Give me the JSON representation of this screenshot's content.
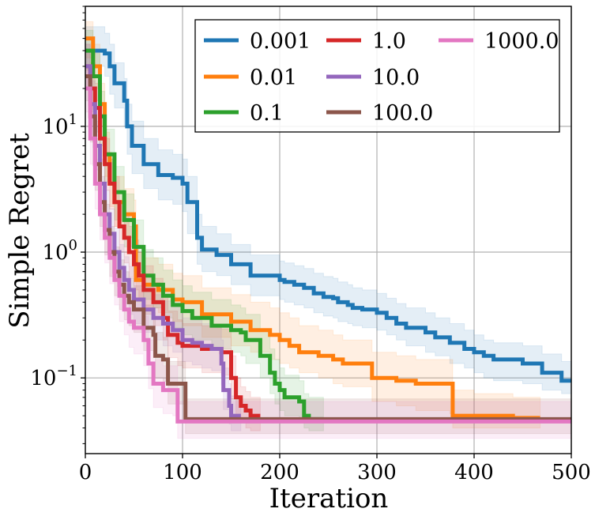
{
  "chart_data": {
    "type": "line",
    "xlabel": "Iteration",
    "ylabel": "Simple Regret",
    "xlim": [
      0,
      500
    ],
    "ylim": [
      0.025,
      90
    ],
    "yscale": "log",
    "grid": true,
    "legend": {
      "placement": "top-right",
      "columns": 3
    },
    "x_ticks": [
      {
        "value": 0,
        "label": "0"
      },
      {
        "value": 100,
        "label": "100"
      },
      {
        "value": 200,
        "label": "200"
      },
      {
        "value": 300,
        "label": "300"
      },
      {
        "value": 400,
        "label": "400"
      },
      {
        "value": 500,
        "label": "500"
      }
    ],
    "y_ticks": [
      {
        "value": 0.1,
        "base": "10",
        "exp": "−1"
      },
      {
        "value": 1,
        "base": "10",
        "exp": "0"
      },
      {
        "value": 10,
        "base": "10",
        "exp": "1"
      }
    ],
    "series": [
      {
        "name": "0.001",
        "color": "#1f77b4",
        "x": [
          0,
          20,
          25,
          30,
          40,
          43,
          48,
          60,
          75,
          90,
          100,
          105,
          115,
          120,
          135,
          150,
          170,
          200,
          205,
          215,
          225,
          235,
          245,
          255,
          260,
          270,
          275,
          285,
          300,
          310,
          320,
          330,
          350,
          360,
          375,
          390,
          400,
          410,
          420,
          450,
          470,
          490,
          500
        ],
        "y": [
          40,
          38,
          30,
          22,
          16,
          10,
          7,
          5,
          4.1,
          3.9,
          3.5,
          2.5,
          1.3,
          1.05,
          0.95,
          0.8,
          0.65,
          0.6,
          0.58,
          0.55,
          0.52,
          0.47,
          0.44,
          0.43,
          0.4,
          0.38,
          0.36,
          0.35,
          0.33,
          0.3,
          0.27,
          0.25,
          0.23,
          0.21,
          0.19,
          0.17,
          0.16,
          0.15,
          0.14,
          0.13,
          0.11,
          0.095,
          0.095
        ],
        "lo": [
          30,
          25,
          18,
          14,
          10,
          6,
          4.2,
          3.2,
          2.6,
          2.4,
          2.1,
          1.4,
          0.8,
          0.7,
          0.65,
          0.55,
          0.45,
          0.42,
          0.4,
          0.38,
          0.36,
          0.33,
          0.31,
          0.3,
          0.28,
          0.27,
          0.26,
          0.25,
          0.24,
          0.22,
          0.2,
          0.18,
          0.16,
          0.15,
          0.13,
          0.12,
          0.11,
          0.1,
          0.095,
          0.09,
          0.08,
          0.075,
          0.075
        ],
        "hi": [
          62,
          55,
          45,
          32,
          24,
          15,
          11,
          8,
          6.5,
          6,
          5.5,
          4,
          2,
          1.6,
          1.4,
          1.15,
          0.95,
          0.85,
          0.82,
          0.78,
          0.74,
          0.68,
          0.64,
          0.62,
          0.58,
          0.55,
          0.52,
          0.5,
          0.47,
          0.43,
          0.39,
          0.36,
          0.33,
          0.3,
          0.27,
          0.24,
          0.22,
          0.2,
          0.19,
          0.18,
          0.155,
          0.135,
          0.135
        ]
      },
      {
        "name": "0.01",
        "color": "#ff7f0e",
        "x": [
          0,
          8,
          15,
          20,
          25,
          30,
          40,
          50,
          52,
          60,
          75,
          90,
          100,
          120,
          150,
          170,
          190,
          200,
          210,
          220,
          240,
          255,
          265,
          290,
          295,
          320,
          340,
          375,
          378,
          400,
          440,
          465,
          468
        ],
        "y": [
          50,
          30,
          15,
          6,
          3.5,
          2.5,
          2.0,
          1.6,
          0.6,
          0.55,
          0.5,
          0.42,
          0.4,
          0.32,
          0.28,
          0.24,
          0.22,
          0.2,
          0.18,
          0.16,
          0.15,
          0.14,
          0.13,
          0.13,
          0.1,
          0.095,
          0.09,
          0.09,
          0.05,
          0.05,
          0.048,
          0.048,
          0.048
        ],
        "lo": [
          35,
          20,
          10,
          4,
          2.3,
          1.6,
          1.3,
          1.0,
          0.4,
          0.36,
          0.33,
          0.28,
          0.26,
          0.21,
          0.18,
          0.16,
          0.14,
          0.13,
          0.12,
          0.11,
          0.1,
          0.09,
          0.085,
          0.085,
          0.065,
          0.06,
          0.055,
          0.052,
          0.04,
          0.04,
          0.04,
          0.04,
          0.04
        ],
        "hi": [
          68,
          45,
          22,
          9,
          5.5,
          4,
          3.2,
          2.6,
          1.0,
          0.9,
          0.8,
          0.68,
          0.65,
          0.52,
          0.46,
          0.4,
          0.36,
          0.33,
          0.3,
          0.26,
          0.24,
          0.22,
          0.2,
          0.2,
          0.16,
          0.15,
          0.14,
          0.14,
          0.08,
          0.075,
          0.07,
          0.07,
          0.07
        ]
      },
      {
        "name": "0.1",
        "color": "#2ca02c",
        "x": [
          0,
          8,
          15,
          20,
          30,
          40,
          50,
          60,
          70,
          80,
          90,
          100,
          110,
          130,
          150,
          160,
          165,
          180,
          190,
          195,
          200,
          205,
          220,
          225,
          230,
          245
        ],
        "y": [
          40,
          25,
          12,
          6,
          3,
          1.8,
          1.1,
          0.65,
          0.55,
          0.45,
          0.38,
          0.34,
          0.3,
          0.26,
          0.24,
          0.23,
          0.2,
          0.15,
          0.11,
          0.09,
          0.08,
          0.07,
          0.065,
          0.05,
          0.047,
          0.047
        ],
        "lo": [
          28,
          16,
          7,
          3.6,
          1.8,
          1.1,
          0.7,
          0.42,
          0.36,
          0.3,
          0.25,
          0.22,
          0.2,
          0.17,
          0.16,
          0.15,
          0.13,
          0.1,
          0.075,
          0.062,
          0.055,
          0.05,
          0.047,
          0.04,
          0.038,
          0.038
        ],
        "hi": [
          58,
          38,
          19,
          9.5,
          4.8,
          2.9,
          1.8,
          1.05,
          0.9,
          0.72,
          0.6,
          0.54,
          0.48,
          0.42,
          0.38,
          0.36,
          0.32,
          0.24,
          0.17,
          0.14,
          0.12,
          0.105,
          0.095,
          0.075,
          0.07,
          0.07
        ]
      },
      {
        "name": "1.0",
        "color": "#d62728",
        "x": [
          0,
          5,
          10,
          15,
          20,
          25,
          30,
          35,
          40,
          45,
          50,
          55,
          60,
          70,
          80,
          85,
          95,
          100,
          120,
          140,
          150,
          155,
          160,
          165,
          170,
          180
        ],
        "y": [
          30,
          20,
          14,
          8,
          5,
          3.5,
          2.5,
          1.6,
          1.3,
          1.0,
          0.8,
          0.65,
          0.5,
          0.4,
          0.3,
          0.22,
          0.19,
          0.18,
          0.17,
          0.16,
          0.1,
          0.07,
          0.06,
          0.055,
          0.05,
          0.05
        ],
        "lo": [
          20,
          13,
          9,
          5,
          3.1,
          2.2,
          1.6,
          1.0,
          0.82,
          0.63,
          0.5,
          0.41,
          0.32,
          0.26,
          0.2,
          0.145,
          0.125,
          0.12,
          0.11,
          0.105,
          0.068,
          0.05,
          0.044,
          0.04,
          0.038,
          0.038
        ],
        "hi": [
          45,
          32,
          22,
          12.5,
          8,
          5.5,
          4,
          2.5,
          2.0,
          1.6,
          1.25,
          1.0,
          0.78,
          0.62,
          0.46,
          0.34,
          0.29,
          0.27,
          0.26,
          0.245,
          0.15,
          0.1,
          0.085,
          0.078,
          0.07,
          0.07
        ]
      },
      {
        "name": "10.0",
        "color": "#9467bd",
        "x": [
          0,
          5,
          10,
          15,
          20,
          25,
          30,
          35,
          40,
          45,
          50,
          60,
          70,
          80,
          90,
          100,
          110,
          120,
          130,
          140,
          142,
          148,
          150,
          155,
          160
        ],
        "y": [
          30,
          15,
          7,
          3.5,
          2.0,
          1.4,
          1.0,
          0.75,
          0.6,
          0.5,
          0.42,
          0.35,
          0.3,
          0.27,
          0.24,
          0.2,
          0.19,
          0.18,
          0.17,
          0.13,
          0.08,
          0.06,
          0.05,
          0.05,
          0.05
        ],
        "lo": [
          20,
          10,
          4.5,
          2.2,
          1.3,
          0.9,
          0.64,
          0.48,
          0.39,
          0.32,
          0.27,
          0.23,
          0.2,
          0.18,
          0.16,
          0.135,
          0.127,
          0.12,
          0.114,
          0.088,
          0.056,
          0.043,
          0.038,
          0.038,
          0.038
        ],
        "hi": [
          45,
          23,
          11,
          5.5,
          3.1,
          2.2,
          1.55,
          1.15,
          0.92,
          0.77,
          0.65,
          0.54,
          0.46,
          0.41,
          0.37,
          0.3,
          0.29,
          0.27,
          0.26,
          0.2,
          0.12,
          0.09,
          0.072,
          0.072,
          0.072
        ]
      },
      {
        "name": "100.0",
        "color": "#8c564b",
        "x": [
          0,
          5,
          10,
          15,
          20,
          25,
          30,
          35,
          40,
          45,
          50,
          60,
          70,
          72,
          80,
          85,
          100,
          103,
          120,
          150,
          200,
          300,
          400,
          500
        ],
        "y": [
          25,
          12,
          5,
          2.5,
          1.5,
          1.0,
          0.7,
          0.55,
          0.45,
          0.4,
          0.35,
          0.25,
          0.22,
          0.15,
          0.14,
          0.09,
          0.09,
          0.047,
          0.047,
          0.047,
          0.047,
          0.047,
          0.047,
          0.047
        ],
        "lo": [
          16,
          7.5,
          3.1,
          1.6,
          0.95,
          0.64,
          0.45,
          0.35,
          0.29,
          0.26,
          0.23,
          0.165,
          0.145,
          0.1,
          0.094,
          0.062,
          0.062,
          0.036,
          0.036,
          0.036,
          0.036,
          0.036,
          0.036,
          0.036
        ],
        "hi": [
          38,
          19,
          8,
          4,
          2.4,
          1.6,
          1.1,
          0.87,
          0.7,
          0.62,
          0.54,
          0.38,
          0.33,
          0.23,
          0.21,
          0.135,
          0.135,
          0.068,
          0.068,
          0.068,
          0.068,
          0.068,
          0.068,
          0.068
        ]
      },
      {
        "name": "1000.0",
        "color": "#e377c2",
        "x": [
          0,
          5,
          10,
          15,
          20,
          25,
          30,
          35,
          40,
          45,
          50,
          60,
          65,
          70,
          80,
          90,
          95,
          100,
          150,
          200,
          300,
          400,
          500
        ],
        "y": [
          20,
          8,
          3.5,
          2.0,
          1.3,
          0.9,
          0.6,
          0.45,
          0.35,
          0.28,
          0.25,
          0.2,
          0.13,
          0.09,
          0.08,
          0.08,
          0.045,
          0.045,
          0.045,
          0.045,
          0.045,
          0.045,
          0.045
        ],
        "lo": [
          13,
          5,
          2.2,
          1.25,
          0.82,
          0.56,
          0.38,
          0.28,
          0.22,
          0.175,
          0.155,
          0.125,
          0.082,
          0.058,
          0.052,
          0.05,
          0.033,
          0.033,
          0.033,
          0.033,
          0.033,
          0.033,
          0.033
        ],
        "hi": [
          30,
          12.5,
          5.5,
          3.1,
          2.0,
          1.4,
          0.93,
          0.7,
          0.55,
          0.44,
          0.39,
          0.31,
          0.2,
          0.14,
          0.125,
          0.125,
          0.065,
          0.065,
          0.065,
          0.065,
          0.065,
          0.065,
          0.065
        ]
      }
    ]
  }
}
